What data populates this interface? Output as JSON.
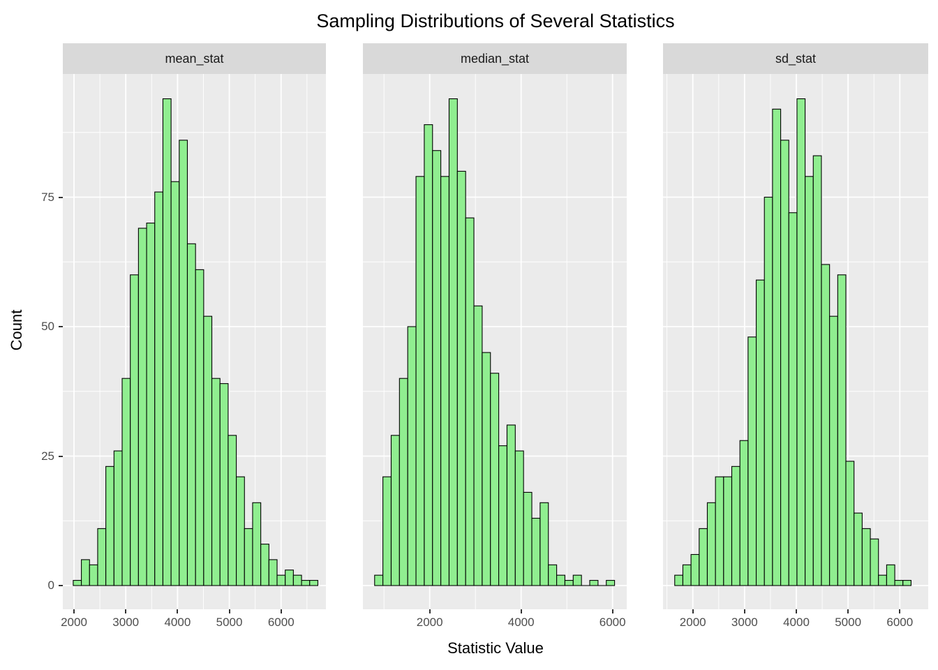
{
  "title": "Sampling Distributions of Several Statistics",
  "y_axis": {
    "label": "Count",
    "ticks": [
      0,
      25,
      50,
      75
    ],
    "minor_gridlines": [
      12.5,
      37.5,
      62.5,
      87.5
    ],
    "ylim": [
      0,
      99
    ]
  },
  "x_axis": {
    "label": "Statistic Value"
  },
  "colors": {
    "bar_fill": "#90EE90",
    "bar_stroke": "#000000",
    "panel_bg": "#EBEBEB",
    "strip_bg": "#D9D9D9",
    "gridline": "#FFFFFF",
    "tick_label": "#4D4D4D",
    "tick_mark": "#333333",
    "text": "#000000"
  },
  "chart_data": [
    {
      "type": "bar",
      "facet": "mean_stat",
      "bin_start": 1985,
      "bin_width": 157.5,
      "counts": [
        1,
        5,
        4,
        11,
        23,
        26,
        40,
        60,
        69,
        70,
        76,
        94,
        78,
        86,
        66,
        61,
        52,
        40,
        39,
        29,
        21,
        11,
        16,
        8,
        5,
        2,
        3,
        2,
        1,
        1
      ],
      "x_domain": [
        1784,
        6866
      ],
      "x_major_ticks": [
        2000,
        3000,
        4000,
        5000,
        6000
      ],
      "x_minor_ticks": [
        2500,
        3500,
        4500,
        5500,
        6500
      ]
    },
    {
      "type": "bar",
      "facet": "median_stat",
      "bin_start": 795,
      "bin_width": 181,
      "counts": [
        2,
        21,
        29,
        40,
        50,
        79,
        89,
        84,
        79,
        94,
        80,
        71,
        54,
        45,
        41,
        27,
        31,
        26,
        18,
        13,
        16,
        4,
        2,
        1,
        2,
        0,
        1,
        0,
        1
      ],
      "x_domain": [
        539,
        6310
      ],
      "x_major_ticks": [
        2000,
        4000,
        6000
      ],
      "x_minor_ticks": [
        1000,
        3000,
        5000
      ]
    },
    {
      "type": "bar",
      "facet": "sd_stat",
      "bin_start": 1650,
      "bin_width": 157.5,
      "counts": [
        2,
        4,
        6,
        11,
        16,
        21,
        21,
        23,
        28,
        48,
        59,
        75,
        92,
        86,
        72,
        94,
        79,
        83,
        62,
        52,
        60,
        24,
        14,
        11,
        9,
        2,
        4,
        1,
        1
      ],
      "x_domain": [
        1424,
        6549
      ],
      "x_major_ticks": [
        2000,
        3000,
        4000,
        5000,
        6000
      ],
      "x_minor_ticks": [
        1500,
        2500,
        3500,
        4500,
        5500
      ]
    }
  ]
}
